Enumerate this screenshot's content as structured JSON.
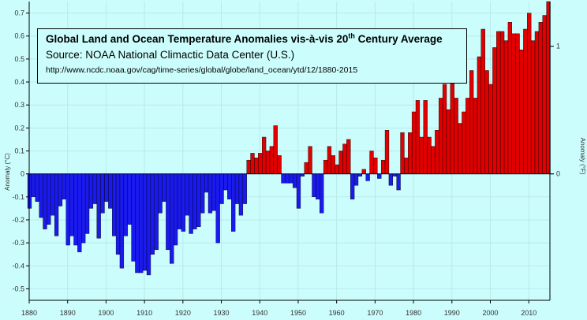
{
  "chart_data": {
    "type": "bar",
    "title": {
      "main": "Global Land and Ocean Temperature Anomalies vis-à-vis 20",
      "sup": "th",
      "rest": " Century Average"
    },
    "subtitle": "Source: NOAA National Climactic Data Center (U.S.)",
    "source_url": "http://www.ncdc.noaa.gov/cag/time-series/global/globe/land_ocean/ytd/12/1880-2015",
    "ylabel": "Anomaly (°C)",
    "ylabel_right": "Anomaly (°F)",
    "xlabel": "",
    "ylim": [
      -0.55,
      0.75
    ],
    "y_ticks": [
      -0.5,
      -0.4,
      -0.3,
      -0.2,
      -0.1,
      0,
      0.1,
      0.2,
      0.3,
      0.4,
      0.5,
      0.6,
      0.7
    ],
    "y_ticks_right": [
      0,
      1
    ],
    "x_ticks": [
      1880,
      1890,
      1900,
      1910,
      1920,
      1930,
      1940,
      1950,
      1960,
      1970,
      1980,
      1990,
      2000,
      2010
    ],
    "grid": true,
    "colors": {
      "positive": "#e00000",
      "negative": "#1a1aee",
      "grid": "#b9eaea",
      "background": "#ccfdfd"
    },
    "x": [
      1880,
      1881,
      1882,
      1883,
      1884,
      1885,
      1886,
      1887,
      1888,
      1889,
      1890,
      1891,
      1892,
      1893,
      1894,
      1895,
      1896,
      1897,
      1898,
      1899,
      1900,
      1901,
      1902,
      1903,
      1904,
      1905,
      1906,
      1907,
      1908,
      1909,
      1910,
      1911,
      1912,
      1913,
      1914,
      1915,
      1916,
      1917,
      1918,
      1919,
      1920,
      1921,
      1922,
      1923,
      1924,
      1925,
      1926,
      1927,
      1928,
      1929,
      1930,
      1931,
      1932,
      1933,
      1934,
      1935,
      1936,
      1937,
      1938,
      1939,
      1940,
      1941,
      1942,
      1943,
      1944,
      1945,
      1946,
      1947,
      1948,
      1949,
      1950,
      1951,
      1952,
      1953,
      1954,
      1955,
      1956,
      1957,
      1958,
      1959,
      1960,
      1961,
      1962,
      1963,
      1964,
      1965,
      1966,
      1967,
      1968,
      1969,
      1970,
      1971,
      1972,
      1973,
      1974,
      1975,
      1976,
      1977,
      1978,
      1979,
      1980,
      1981,
      1982,
      1983,
      1984,
      1985,
      1986,
      1987,
      1988,
      1989,
      1990,
      1991,
      1992,
      1993,
      1994,
      1995,
      1996,
      1997,
      1998,
      1999,
      2000,
      2001,
      2002,
      2003,
      2004,
      2005,
      2006,
      2007,
      2008,
      2009,
      2010,
      2011,
      2012,
      2013,
      2014,
      2015
    ],
    "values": [
      -0.15,
      -0.1,
      -0.12,
      -0.19,
      -0.24,
      -0.22,
      -0.18,
      -0.27,
      -0.14,
      -0.11,
      -0.31,
      -0.27,
      -0.31,
      -0.34,
      -0.3,
      -0.26,
      -0.15,
      -0.13,
      -0.28,
      -0.17,
      -0.12,
      -0.15,
      -0.27,
      -0.35,
      -0.41,
      -0.27,
      -0.22,
      -0.38,
      -0.43,
      -0.43,
      -0.42,
      -0.44,
      -0.35,
      -0.33,
      -0.17,
      -0.12,
      -0.33,
      -0.39,
      -0.31,
      -0.24,
      -0.25,
      -0.18,
      -0.26,
      -0.24,
      -0.23,
      -0.17,
      -0.08,
      -0.17,
      -0.16,
      -0.3,
      -0.13,
      -0.07,
      -0.11,
      -0.25,
      -0.13,
      -0.18,
      -0.13,
      0.06,
      0.09,
      0.07,
      0.09,
      0.16,
      0.1,
      0.12,
      0.21,
      0.08,
      -0.04,
      -0.04,
      -0.04,
      -0.06,
      -0.15,
      -0.01,
      0.05,
      0.12,
      -0.1,
      -0.11,
      -0.17,
      0.06,
      0.12,
      0.08,
      0.04,
      0.1,
      0.13,
      0.15,
      -0.11,
      -0.05,
      -0.01,
      0.02,
      -0.03,
      0.1,
      0.07,
      -0.02,
      0.06,
      0.19,
      -0.05,
      -0.01,
      -0.07,
      0.18,
      0.07,
      0.18,
      0.27,
      0.32,
      0.16,
      0.32,
      0.16,
      0.12,
      0.19,
      0.33,
      0.39,
      0.28,
      0.42,
      0.33,
      0.22,
      0.27,
      0.33,
      0.45,
      0.33,
      0.51,
      0.63,
      0.45,
      0.39,
      0.55,
      0.62,
      0.62,
      0.58,
      0.66,
      0.61,
      0.61,
      0.54,
      0.63,
      0.7,
      0.58,
      0.62,
      0.66,
      0.69,
      0.75
    ]
  }
}
